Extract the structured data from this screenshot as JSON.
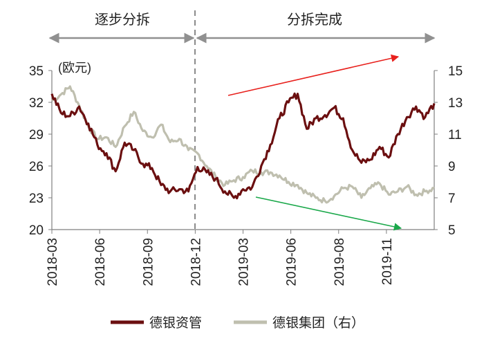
{
  "chart_data": {
    "type": "line",
    "phases": [
      "逐步分拆",
      "分拆完成"
    ],
    "y_left_unit": "(欧元)",
    "y_left": {
      "ticks": [
        20,
        23,
        26,
        29,
        32,
        35
      ],
      "range": [
        20,
        35
      ]
    },
    "y_right": {
      "ticks": [
        5,
        7,
        9,
        11,
        13,
        15
      ],
      "range": [
        5,
        15
      ]
    },
    "x_ticks": [
      "2018-03",
      "2018-06",
      "2018-09",
      "2018-12",
      "2019-03",
      "2019-06",
      "2019-08",
      "2019-11"
    ],
    "series": [
      {
        "name": "德银资管",
        "axis": "left",
        "color": "#6b0f10",
        "points": [
          [
            "2018-03",
            32.8
          ],
          [
            "2018-03b",
            31.0
          ],
          [
            "2018-04",
            30.7
          ],
          [
            "2018-04b",
            31.6
          ],
          [
            "2018-05",
            30.0
          ],
          [
            "2018-05b",
            28.0
          ],
          [
            "2018-06",
            27.2
          ],
          [
            "2018-06b",
            25.5
          ],
          [
            "2018-07",
            28.2
          ],
          [
            "2018-07b",
            27.5
          ],
          [
            "2018-08",
            26.2
          ],
          [
            "2018-08b",
            25.8
          ],
          [
            "2018-09",
            24.2
          ],
          [
            "2018-09b",
            23.6
          ],
          [
            "2018-10",
            23.8
          ],
          [
            "2018-10b",
            23.6
          ],
          [
            "2018-11",
            25.9
          ],
          [
            "2018-11b",
            25.4
          ],
          [
            "2018-12",
            24.8
          ],
          [
            "2018-12b",
            23.6
          ],
          [
            "2019-01",
            23.0
          ],
          [
            "2019-01b",
            23.8
          ],
          [
            "2019-02",
            24.0
          ],
          [
            "2019-02b",
            26.0
          ],
          [
            "2019-03",
            28.0
          ],
          [
            "2019-03b",
            30.5
          ],
          [
            "2019-04",
            32.0
          ],
          [
            "2019-04b",
            32.8
          ],
          [
            "2019-05",
            29.5
          ],
          [
            "2019-05b",
            30.5
          ],
          [
            "2019-06",
            30.8
          ],
          [
            "2019-06b",
            31.5
          ],
          [
            "2019-07",
            30.5
          ],
          [
            "2019-07b",
            27.5
          ],
          [
            "2019-08",
            26.3
          ],
          [
            "2019-08b",
            26.6
          ],
          [
            "2019-09",
            27.8
          ],
          [
            "2019-09b",
            26.8
          ],
          [
            "2019-10",
            29.0
          ],
          [
            "2019-10b",
            30.6
          ],
          [
            "2019-11",
            31.6
          ],
          [
            "2019-11b",
            30.6
          ],
          [
            "2019-12",
            31.9
          ]
        ]
      },
      {
        "name": "德银集团（右）",
        "axis": "right",
        "color": "#bfbfaf",
        "points": [
          [
            "2018-03",
            13.1
          ],
          [
            "2018-03b",
            13.5
          ],
          [
            "2018-04",
            14.0
          ],
          [
            "2018-04b",
            12.8
          ],
          [
            "2018-05",
            11.5
          ],
          [
            "2018-05b",
            10.7
          ],
          [
            "2018-06",
            10.8
          ],
          [
            "2018-06b",
            10.2
          ],
          [
            "2018-07",
            11.5
          ],
          [
            "2018-07b",
            12.4
          ],
          [
            "2018-08",
            11.2
          ],
          [
            "2018-08b",
            10.8
          ],
          [
            "2018-09",
            11.6
          ],
          [
            "2018-09b",
            10.5
          ],
          [
            "2018-10",
            10.7
          ],
          [
            "2018-10b",
            10.0
          ],
          [
            "2018-11",
            9.8
          ],
          [
            "2018-11b",
            9.0
          ],
          [
            "2018-12",
            8.3
          ],
          [
            "2018-12b",
            7.8
          ],
          [
            "2019-01",
            8.1
          ],
          [
            "2019-01b",
            8.3
          ],
          [
            "2019-02",
            8.7
          ],
          [
            "2019-02b",
            8.6
          ],
          [
            "2019-03",
            8.6
          ],
          [
            "2019-03b",
            8.4
          ],
          [
            "2019-04",
            8.0
          ],
          [
            "2019-04b",
            7.8
          ],
          [
            "2019-05",
            7.3
          ],
          [
            "2019-05b",
            7.0
          ],
          [
            "2019-06",
            6.8
          ],
          [
            "2019-06b",
            7.1
          ],
          [
            "2019-07",
            7.6
          ],
          [
            "2019-07b",
            7.7
          ],
          [
            "2019-08",
            7.0
          ],
          [
            "2019-08b",
            7.6
          ],
          [
            "2019-09",
            7.9
          ],
          [
            "2019-09b",
            7.2
          ],
          [
            "2019-10",
            7.4
          ],
          [
            "2019-10b",
            7.7
          ],
          [
            "2019-11",
            7.2
          ],
          [
            "2019-11b",
            7.4
          ],
          [
            "2019-12",
            7.6
          ]
        ]
      }
    ]
  }
}
